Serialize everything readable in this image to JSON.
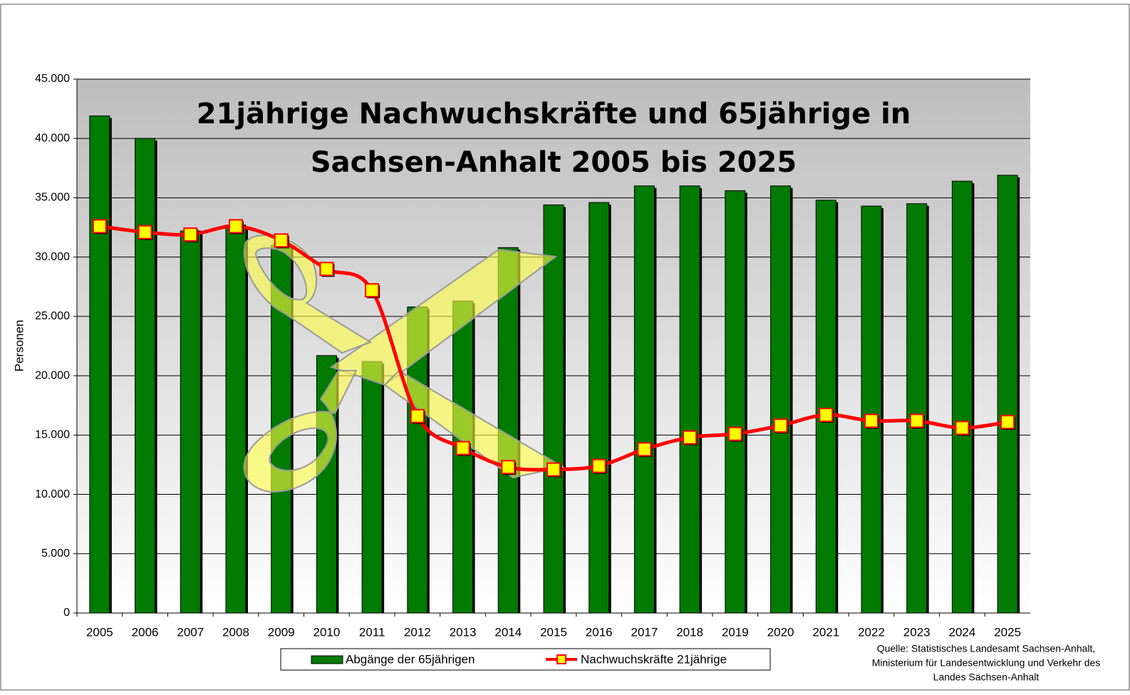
{
  "chart_data": {
    "type": "bar_line",
    "title": [
      "21jährige Nachwuchskräfte und 65jährige in",
      "Sachsen-Anhalt 2005 bis 2025"
    ],
    "ylabel": "Personen",
    "categories": [
      "2005",
      "2006",
      "2007",
      "2008",
      "2009",
      "2010",
      "2011",
      "2012",
      "2013",
      "2014",
      "2015",
      "2016",
      "2017",
      "2018",
      "2019",
      "2020",
      "2021",
      "2022",
      "2023",
      "2024",
      "2025"
    ],
    "series": [
      {
        "name": "Abgänge der 65jährigen",
        "type": "bar",
        "color": "#007a00",
        "values": [
          41900,
          40000,
          32200,
          32700,
          31000,
          21700,
          21200,
          25800,
          26300,
          30800,
          34400,
          34600,
          36000,
          36000,
          35600,
          36000,
          34800,
          34300,
          34500,
          36400,
          36900
        ]
      },
      {
        "name": "Nachwuchskräfte 21jährige",
        "type": "line",
        "color": "#ff0000",
        "marker_color": "#ffff00",
        "values": [
          32600,
          32100,
          31900,
          32600,
          31400,
          29000,
          27200,
          16600,
          13900,
          12300,
          12100,
          12400,
          13800,
          14800,
          15100,
          15800,
          16700,
          16200,
          16200,
          15600,
          16100
        ]
      }
    ],
    "ylim": [
      0,
      45000
    ],
    "yticks": [
      0,
      {
        "value": 5000,
        "label": "5.000"
      },
      {
        "value": 10000,
        "label": "10.000"
      },
      {
        "value": 15000,
        "label": "15.000"
      },
      {
        "value": 20000,
        "label": "20.000"
      },
      {
        "value": 25000,
        "label": "25.000"
      },
      {
        "value": 30000,
        "label": "30.000"
      },
      {
        "value": 35000,
        "label": "35.000"
      },
      {
        "value": 40000,
        "label": "40.000"
      },
      {
        "value": 45000,
        "label": "45.000"
      }
    ],
    "grid": true,
    "source": [
      "Quelle: Statistisches Landesamt Sachsen-Anhalt,",
      "Ministerium für Landesentwicklung und Verkehr des",
      "Landes Sachsen-Anhalt"
    ]
  }
}
